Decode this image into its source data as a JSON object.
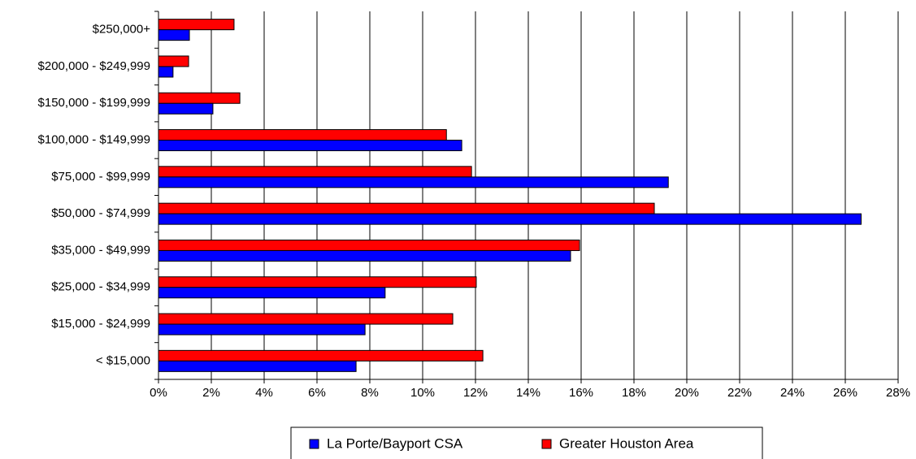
{
  "chart_data": {
    "type": "hbar",
    "categories": [
      "$250,000+",
      "$200,000 - $249,999",
      "$150,000 - $199,999",
      "$100,000 - $149,999",
      "$75,000 - $99,999",
      "$50,000 - $74,999",
      "$35,000 - $49,999",
      "$25,000 - $34,999",
      "$15,000 - $24,999",
      "< $15,000"
    ],
    "series": [
      {
        "name": "La Porte/Bayport CSA",
        "color": "#0000ff",
        "values": [
          1.17,
          0.55,
          2.06,
          11.48,
          19.3,
          26.6,
          15.6,
          8.58,
          7.82,
          7.48
        ]
      },
      {
        "name": "Greater Houston Area",
        "color": "#ff0000",
        "values": [
          2.86,
          1.14,
          3.08,
          10.9,
          11.85,
          18.77,
          15.94,
          12.03,
          11.14,
          12.28
        ]
      }
    ],
    "xlim": [
      0,
      28
    ],
    "xticks": [
      {
        "value": 0,
        "label": "0%"
      },
      {
        "value": 2,
        "label": "2%"
      },
      {
        "value": 4,
        "label": "4%"
      },
      {
        "value": 6,
        "label": "6%"
      },
      {
        "value": 8,
        "label": "8%"
      },
      {
        "value": 10,
        "label": "10%"
      },
      {
        "value": 12,
        "label": "12%"
      },
      {
        "value": 14,
        "label": "14%"
      },
      {
        "value": 16,
        "label": "16%"
      },
      {
        "value": 18,
        "label": "18%"
      },
      {
        "value": 20,
        "label": "20%"
      },
      {
        "value": 22,
        "label": "22%"
      },
      {
        "value": 24,
        "label": "24%"
      },
      {
        "value": 26,
        "label": "26%"
      },
      {
        "value": 28,
        "label": "28%"
      }
    ],
    "grid": true,
    "legend": "bottom"
  }
}
